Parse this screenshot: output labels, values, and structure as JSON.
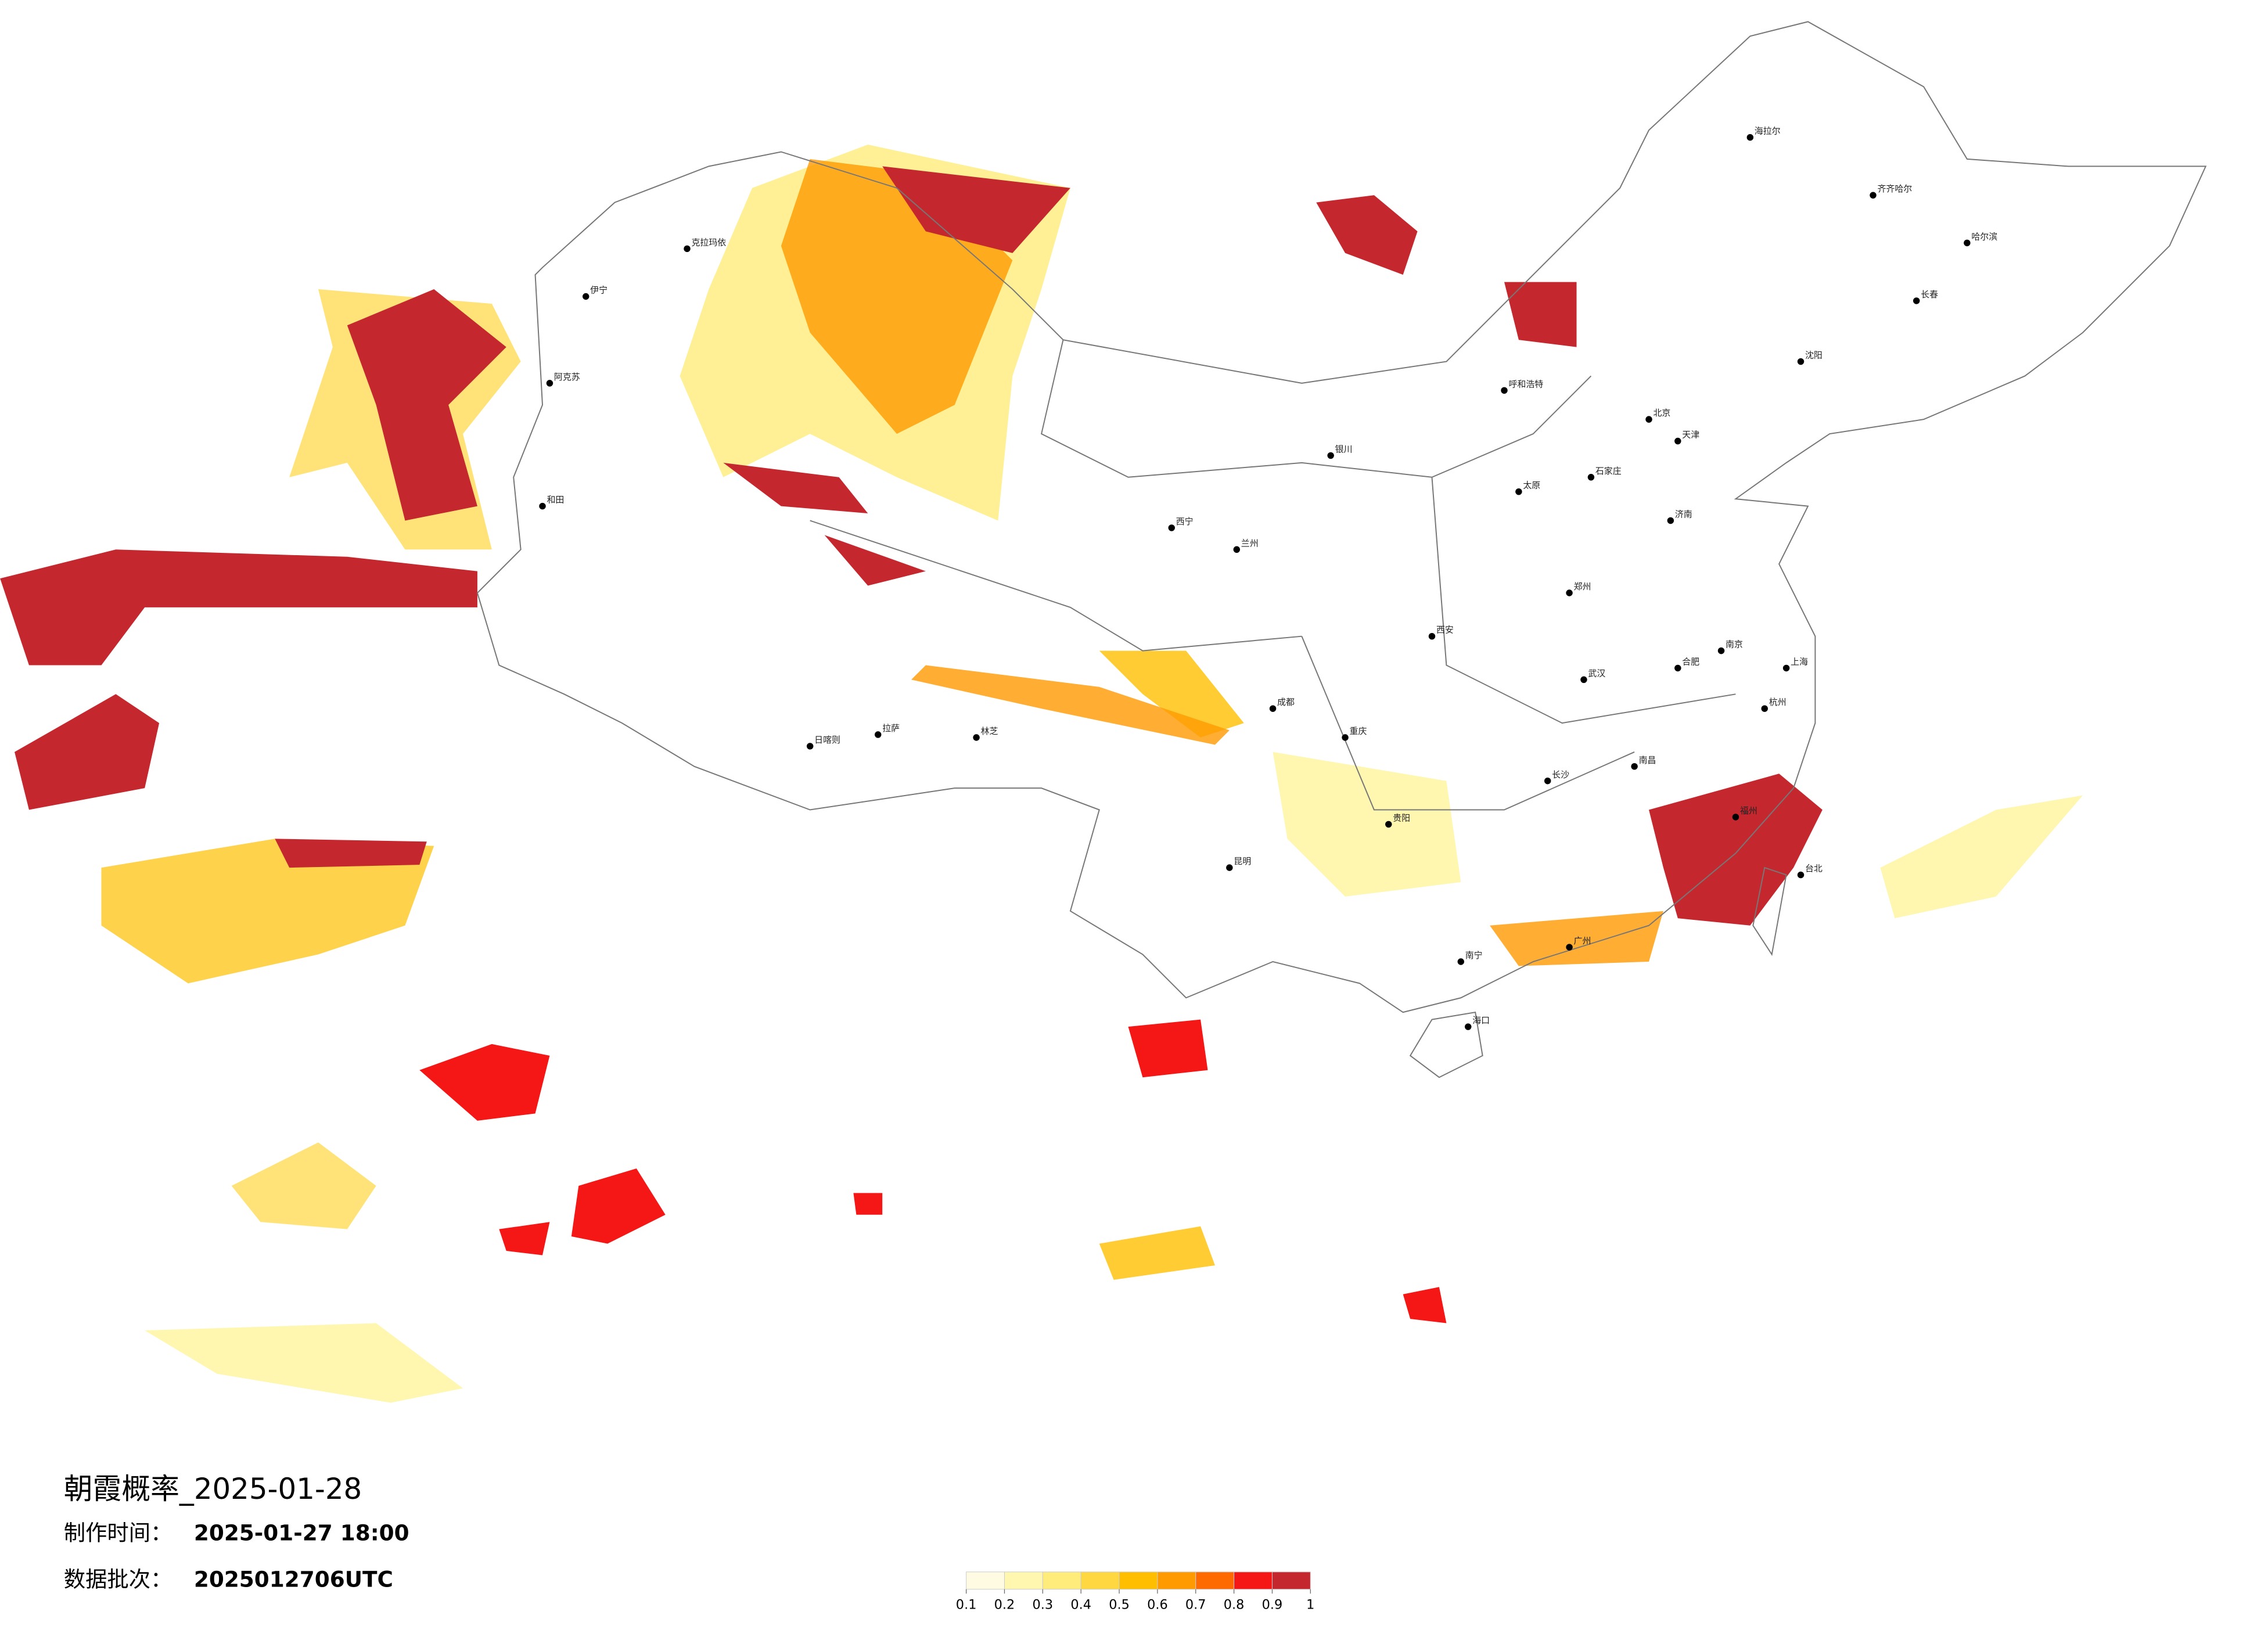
{
  "header": {
    "title": "朝霞概率_2025-01-28",
    "made_time_label": "制作时间：",
    "made_time": "2025-01-27 18:00",
    "batch_label": "数据批次：",
    "batch": "2025012706UTC"
  },
  "legend": {
    "colors": [
      "#fffbe3",
      "#fff6b0",
      "#ffec7a",
      "#ffd740",
      "#ffbf00",
      "#ff9a00",
      "#ff6a00",
      "#f51616",
      "#c4282e"
    ],
    "ticks": [
      0.1,
      0.2,
      0.3,
      0.4,
      0.5,
      0.6,
      0.7,
      0.8,
      0.9,
      1
    ]
  },
  "cities": [
    "伊宁",
    "克拉玛依",
    "阿克苏",
    "和田",
    "日喀则",
    "拉萨",
    "林芝",
    "海拉尔",
    "齐齐哈尔",
    "哈尔滨",
    "长春",
    "沈阳",
    "北京",
    "天津",
    "石家庄",
    "太原",
    "西安",
    "兰州",
    "西宁",
    "银川",
    "呼和浩特",
    "郑州",
    "济南",
    "南京",
    "上海",
    "杭州",
    "合肥",
    "武汉",
    "长沙",
    "南昌",
    "福州",
    "广州",
    "南宁",
    "海口",
    "贵阳",
    "昆明",
    "成都",
    "重庆",
    "台北"
  ]
}
